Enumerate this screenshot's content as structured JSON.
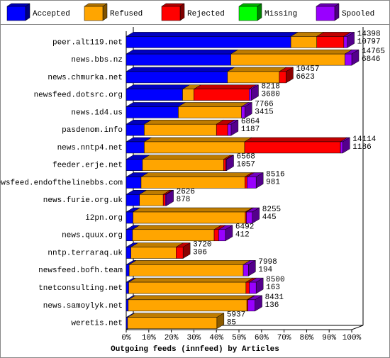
{
  "chart_data": {
    "type": "bar3d-stacked-horizontal",
    "xlabel": "Outgoing feeds (innfeed) by Articles",
    "categories": [
      "peer.alt119.net",
      "news.bbs.nz",
      "news.chmurka.net",
      "newsfeed.dotsrc.org",
      "news.1d4.us",
      "pasdenom.info",
      "news.nntp4.net",
      "feeder.erje.net",
      "newsfeed.endofthelinebbs.com",
      "news.furie.org.uk",
      "i2pn.org",
      "news.quux.org",
      "nntp.terraraq.uk",
      "newsfeed.bofh.team",
      "tnetconsulting.net",
      "news.samoylyk.net",
      "weretis.net"
    ],
    "series": [
      {
        "name": "Accepted",
        "color": "#0000ff",
        "values": [
          73,
          46.4,
          44.9,
          25,
          23.1,
          8,
          8,
          7.2,
          6.6,
          5.9,
          3,
          2.8,
          2.1,
          1.3,
          1.1,
          0.9,
          0.6
        ]
      },
      {
        "name": "Refused",
        "color": "#ffa500",
        "values": [
          11.5,
          50.6,
          23,
          5,
          28,
          32,
          44.5,
          36,
          46,
          10.5,
          49.8,
          36.2,
          20,
          50.6,
          52,
          52.6,
          39.6
        ]
      },
      {
        "name": "Rejected",
        "color": "#ff0000",
        "values": [
          12,
          0,
          3,
          24.5,
          0,
          5,
          42.5,
          1,
          1,
          1,
          0.5,
          2,
          3.1,
          0,
          1.5,
          0.5,
          0
        ]
      },
      {
        "name": "Missing",
        "color": "#00ff00",
        "values": [
          0,
          0,
          0,
          0,
          0,
          0,
          0,
          0,
          0,
          0,
          0,
          0,
          0,
          0,
          0,
          0,
          0
        ]
      },
      {
        "name": "Spooled",
        "color": "#9900ff",
        "values": [
          1.5,
          3,
          0,
          1,
          1.5,
          1.5,
          1,
          0.3,
          4,
          0.4,
          2.6,
          3,
          0,
          2.3,
          3,
          3.1,
          0
        ]
      }
    ],
    "offered": [
      14398,
      14765,
      10457,
      8218,
      7766,
      6864,
      14114,
      6568,
      8516,
      2626,
      8255,
      6492,
      3720,
      7998,
      8500,
      8431,
      5937
    ],
    "accepted": [
      10797,
      6846,
      6623,
      3680,
      3415,
      1187,
      1186,
      1057,
      981,
      878,
      445,
      412,
      306,
      194,
      163,
      136,
      85
    ],
    "xlim": [
      0,
      100
    ],
    "xticks": [
      {
        "value": 0,
        "label": "0%"
      },
      {
        "value": 10,
        "label": "10%"
      },
      {
        "value": 20,
        "label": "20%"
      },
      {
        "value": 30,
        "label": "30%"
      },
      {
        "value": 40,
        "label": "40%"
      },
      {
        "value": 50,
        "label": "50%"
      },
      {
        "value": 60,
        "label": "60%"
      },
      {
        "value": 70,
        "label": "70%"
      },
      {
        "value": 80,
        "label": "80%"
      },
      {
        "value": 90,
        "label": "90%"
      },
      {
        "value": 100,
        "label": "100%"
      }
    ]
  }
}
